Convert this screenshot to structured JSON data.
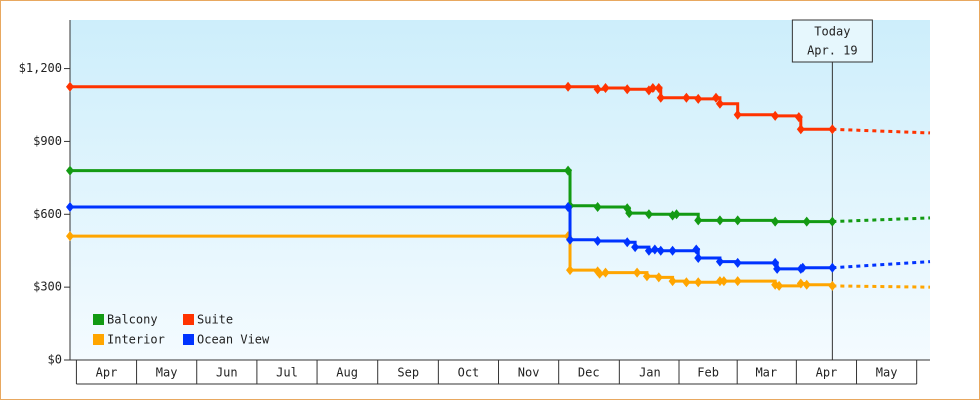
{
  "chart_data": {
    "type": "step",
    "xlim": [
      -3.5,
      432.5
    ],
    "ylim": [
      0,
      1400
    ],
    "yticks": [
      {
        "value": 0,
        "label": "$0"
      },
      {
        "value": 300,
        "label": "$300"
      },
      {
        "value": 600,
        "label": "$600"
      },
      {
        "value": 900,
        "label": "$900"
      },
      {
        "value": 1200,
        "label": "$1,200"
      }
    ],
    "xticks": [
      {
        "value": 15,
        "label": "Apr"
      },
      {
        "value": 45.5,
        "label": "May"
      },
      {
        "value": 76,
        "label": "Jun"
      },
      {
        "value": 106.5,
        "label": "Jul"
      },
      {
        "value": 137,
        "label": "Aug"
      },
      {
        "value": 168,
        "label": "Sep"
      },
      {
        "value": 198.5,
        "label": "Oct"
      },
      {
        "value": 229,
        "label": "Nov"
      },
      {
        "value": 259.5,
        "label": "Dec"
      },
      {
        "value": 290.5,
        "label": "Jan"
      },
      {
        "value": 320,
        "label": "Feb"
      },
      {
        "value": 349.5,
        "label": "Mar"
      },
      {
        "value": 380,
        "label": "Apr"
      },
      {
        "value": 410.5,
        "label": "May"
      }
    ],
    "today": {
      "x": 383,
      "label": [
        "Today",
        "Apr. 19"
      ]
    },
    "legend": "bottom-left",
    "series": [
      {
        "name": "Balcony",
        "color": "#139a13",
        "x": [
          -3.5,
          249,
          250,
          264,
          279,
          280,
          290,
          302,
          304,
          315,
          326,
          335,
          354,
          370,
          383
        ],
        "values": [
          780,
          780,
          635,
          630,
          625,
          605,
          600,
          595,
          600,
          575,
          575,
          575,
          570,
          570,
          570
        ],
        "forecast_x": 432.5,
        "forecast_value": 585
      },
      {
        "name": "Suite",
        "color": "#ff3300",
        "x": [
          -3.5,
          249,
          264,
          268,
          279,
          290,
          292,
          295,
          296,
          309,
          315,
          324,
          326,
          335,
          354,
          366,
          367,
          383
        ],
        "values": [
          1125,
          1125,
          1115,
          1120,
          1115,
          1110,
          1120,
          1120,
          1080,
          1080,
          1075,
          1080,
          1055,
          1010,
          1005,
          1000,
          950,
          950
        ],
        "forecast_x": 432.5,
        "forecast_value": 935
      },
      {
        "name": "Interior",
        "color": "#ffa500",
        "x": [
          -3.5,
          249,
          250,
          264,
          265,
          268,
          284,
          289,
          295,
          302,
          309,
          315,
          326,
          328,
          335,
          354,
          356,
          367,
          370,
          383
        ],
        "values": [
          510,
          510,
          370,
          365,
          355,
          360,
          360,
          345,
          340,
          325,
          320,
          320,
          325,
          325,
          325,
          310,
          305,
          315,
          310,
          305
        ],
        "forecast_x": 432.5,
        "forecast_value": 300
      },
      {
        "name": "Ocean View",
        "color": "#0033ff",
        "x": [
          -3.5,
          249,
          250,
          264,
          279,
          283,
          290,
          293,
          296,
          302,
          314,
          315,
          326,
          335,
          354,
          355,
          367,
          368,
          383
        ],
        "values": [
          630,
          630,
          495,
          490,
          485,
          465,
          450,
          455,
          450,
          450,
          455,
          420,
          405,
          400,
          400,
          375,
          375,
          380,
          380
        ],
        "forecast_x": 432.5,
        "forecast_value": 405
      }
    ]
  }
}
